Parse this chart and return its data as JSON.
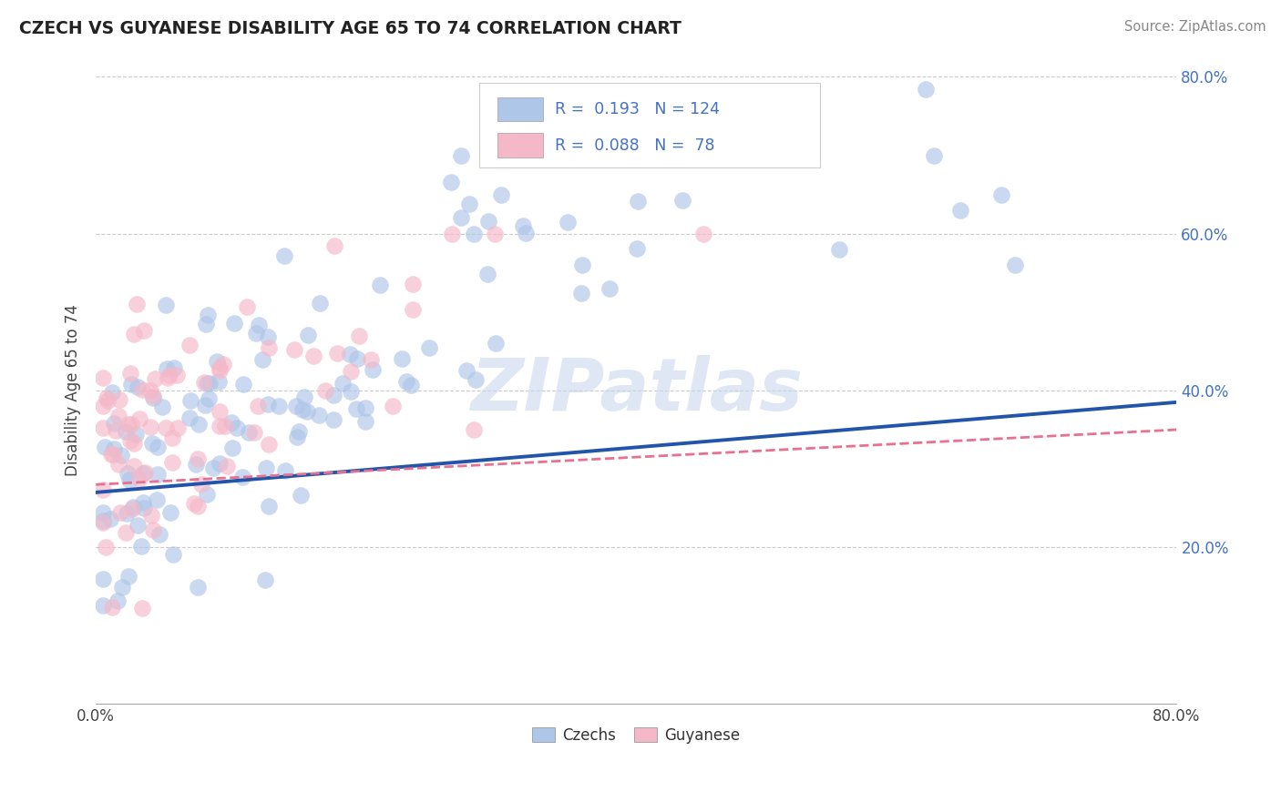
{
  "title": "CZECH VS GUYANESE DISABILITY AGE 65 TO 74 CORRELATION CHART",
  "source_text": "Source: ZipAtlas.com",
  "ylabel": "Disability Age 65 to 74",
  "xlim": [
    0.0,
    0.8
  ],
  "ylim": [
    0.0,
    0.8
  ],
  "czech_R": 0.193,
  "czech_N": 124,
  "guyanese_R": 0.088,
  "guyanese_N": 78,
  "czech_color": "#aec6e8",
  "guyanese_color": "#f5b8c8",
  "czech_line_color": "#2255aa",
  "guyanese_line_color": "#e87090",
  "legend_label_czech": "Czechs",
  "legend_label_guyanese": "Guyanese",
  "watermark": "ZIPatlas",
  "seed": 12345
}
